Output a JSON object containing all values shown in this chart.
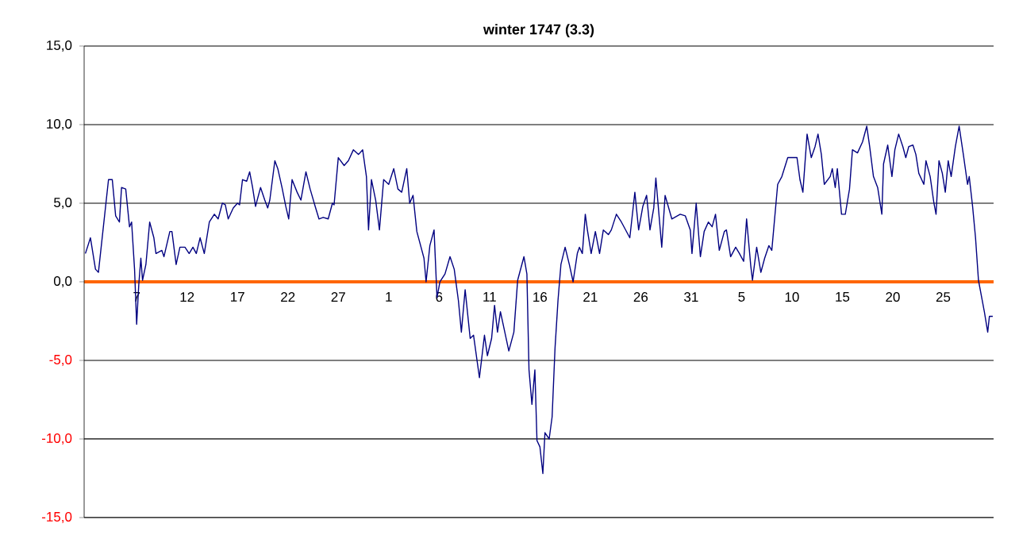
{
  "chart_data": {
    "type": "line",
    "title": "winter 1747 (3.3)",
    "x": [
      "1746-12-01T22:00",
      "1746-12-02T10:00",
      "1746-12-02T22:00",
      "1746-12-03T05:00",
      "1746-12-04T05:00",
      "1746-12-04T14:00",
      "1746-12-04T22:00",
      "1746-12-05T07:00",
      "1746-12-05T12:00",
      "1746-12-05T22:00",
      "1746-12-06T07:00",
      "1746-12-06T12:00",
      "1746-12-06T19:00",
      "1746-12-07T00:00",
      "1746-12-07T05:00",
      "1746-12-07T10:00",
      "1746-12-07T14:00",
      "1746-12-07T22:00",
      "1746-12-08T07:00",
      "1746-12-08T17:00",
      "1746-12-08T22:00",
      "1746-12-09T12:00",
      "1746-12-09T17:00",
      "1746-12-10T07:00",
      "1746-12-10T12:00",
      "1746-12-10T22:00",
      "1746-12-11T07:00",
      "1746-12-11T19:00",
      "1746-12-12T05:00",
      "1746-12-12T14:00",
      "1746-12-12T22:00",
      "1746-12-13T07:00",
      "1746-12-13T17:00",
      "1746-12-14T05:00",
      "1746-12-14T17:00",
      "1746-12-15T02:00",
      "1746-12-15T12:00",
      "1746-12-15T19:00",
      "1746-12-16T02:00",
      "1746-12-16T14:00",
      "1746-12-17T00:00",
      "1746-12-17T05:00",
      "1746-12-17T12:00",
      "1746-12-17T22:00",
      "1746-12-18T05:00",
      "1746-12-18T12:00",
      "1746-12-18T19:00",
      "1746-12-19T07:00",
      "1746-12-19T17:00",
      "1746-12-20T00:00",
      "1746-12-20T05:00",
      "1746-12-20T17:00",
      "1746-12-21T00:00",
      "1746-12-21T10:00",
      "1746-12-21T19:00",
      "1746-12-22T02:00",
      "1746-12-22T10:00",
      "1746-12-22T22:00",
      "1746-12-23T07:00",
      "1746-12-23T19:00",
      "1746-12-24T05:00",
      "1746-12-24T17:00",
      "1746-12-25T02:00",
      "1746-12-25T12:00",
      "1746-12-26T00:00",
      "1746-12-26T10:00",
      "1746-12-26T14:00",
      "1746-12-27T00:00",
      "1746-12-27T14:00",
      "1746-12-28T00:00",
      "1746-12-28T12:00",
      "1746-12-29T00:00",
      "1746-12-29T10:00",
      "1746-12-29T19:00",
      "1746-12-30T00:00",
      "1746-12-30T07:00",
      "1746-12-30T17:00",
      "1746-12-31T02:00",
      "1746-12-31T12:00",
      "1747-01-01T00:00",
      "1747-01-01T12:00",
      "1747-01-01T22:00",
      "1747-01-02T07:00",
      "1747-01-02T19:00",
      "1747-01-03T02:00",
      "1747-01-03T10:00",
      "1747-01-03T19:00",
      "1747-01-04T05:00",
      "1747-01-04T12:00",
      "1747-01-04T17:00",
      "1747-01-05T02:00",
      "1747-01-05T12:00",
      "1747-01-05T19:00",
      "1747-01-06T02:00",
      "1747-01-06T14:00",
      "1747-01-07T02:00",
      "1747-01-07T12:00",
      "1747-01-07T22:00",
      "1747-01-08T05:00",
      "1747-01-08T14:00",
      "1747-01-09T02:00",
      "1747-01-09T10:00",
      "1747-01-10T00:00",
      "1747-01-10T12:00",
      "1747-01-10T19:00",
      "1747-01-11T05:00",
      "1747-01-11T12:00",
      "1747-01-11T19:00",
      "1747-01-12T02:00",
      "1747-01-12T10:00",
      "1747-01-12T22:00",
      "1747-01-13T10:00",
      "1747-01-13T19:00",
      "1747-01-14T10:00",
      "1747-01-14T17:00",
      "1747-01-14T22:00",
      "1747-01-15T05:00",
      "1747-01-15T12:00",
      "1747-01-15T17:00",
      "1747-01-16T00:00",
      "1747-01-16T07:00",
      "1747-01-16T12:00",
      "1747-01-16T22:00",
      "1747-01-17T05:00",
      "1747-01-17T12:00",
      "1747-01-17T19:00",
      "1747-01-18T02:00",
      "1747-01-18T12:00",
      "1747-01-18T22:00",
      "1747-01-19T07:00",
      "1747-01-19T17:00",
      "1747-01-19T22:00",
      "1747-01-20T05:00",
      "1747-01-20T12:00",
      "1747-01-20T17:00",
      "1747-01-21T02:00",
      "1747-01-21T12:00",
      "1747-01-21T22:00",
      "1747-01-22T07:00",
      "1747-01-22T19:00",
      "1747-01-23T02:00",
      "1747-01-23T14:00",
      "1747-01-24T02:00",
      "1747-01-24T22:00",
      "1747-01-25T10:00",
      "1747-01-25T19:00",
      "1747-01-26T05:00",
      "1747-01-26T14:00",
      "1747-01-26T22:00",
      "1747-01-27T07:00",
      "1747-01-27T12:00",
      "1747-01-28T02:00",
      "1747-01-28T10:00",
      "1747-01-29T02:00",
      "1747-01-29T22:00",
      "1747-01-30T10:00",
      "1747-01-30T22:00",
      "1747-01-31T02:00",
      "1747-01-31T12:00",
      "1747-01-31T22:00",
      "1747-02-01T07:00",
      "1747-02-01T17:00",
      "1747-02-02T02:00",
      "1747-02-02T10:00",
      "1747-02-02T19:00",
      "1747-02-03T07:00",
      "1747-02-03T12:00",
      "1747-02-03T22:00",
      "1747-02-04T10:00",
      "1747-02-04T19:00",
      "1747-02-05T05:00",
      "1747-02-05T12:00",
      "1747-02-05T22:00",
      "1747-02-06T02:00",
      "1747-02-06T12:00",
      "1747-02-06T22:00",
      "1747-02-07T07:00",
      "1747-02-07T17:00",
      "1747-02-08T00:00",
      "1747-02-08T10:00",
      "1747-02-08T14:00",
      "1747-02-09T00:00",
      "1747-02-09T14:00",
      "1747-02-10T12:00",
      "1747-02-10T19:00",
      "1747-02-11T02:00",
      "1747-02-11T12:00",
      "1747-02-11T22:00",
      "1747-02-12T07:00",
      "1747-02-12T14:00",
      "1747-02-12T22:00",
      "1747-02-13T05:00",
      "1747-02-13T19:00",
      "1747-02-14T00:00",
      "1747-02-14T07:00",
      "1747-02-14T12:00",
      "1747-02-14T22:00",
      "1747-02-15T07:00",
      "1747-02-15T17:00",
      "1747-02-16T00:00",
      "1747-02-16T12:00",
      "1747-02-17T00:00",
      "1747-02-17T10:00",
      "1747-02-17T17:00",
      "1747-02-18T02:00",
      "1747-02-18T12:00",
      "1747-02-18T22:00",
      "1747-02-19T02:00",
      "1747-02-19T12:00",
      "1747-02-19T22:00",
      "1747-02-20T05:00",
      "1747-02-20T14:00",
      "1747-02-21T00:00",
      "1747-02-21T07:00",
      "1747-02-21T14:00",
      "1747-02-22T00:00",
      "1747-02-22T07:00",
      "1747-02-22T14:00",
      "1747-02-23T02:00",
      "1747-02-23T07:00",
      "1747-02-23T17:00",
      "1747-02-24T02:00",
      "1747-02-24T07:00",
      "1747-02-24T14:00",
      "1747-02-24T22:00",
      "1747-02-25T05:00",
      "1747-02-25T12:00",
      "1747-02-25T19:00",
      "1747-02-26T05:00",
      "1747-02-26T14:00",
      "1747-02-27T00:00",
      "1747-02-27T10:00",
      "1747-02-27T14:00",
      "1747-02-27T22:00",
      "1747-02-28T05:00",
      "1747-02-28T12:00",
      "1747-02-28T19:00",
      "1747-03-01T02:00",
      "1747-03-01T10:00",
      "1747-03-01T14:00",
      "1747-03-01T22:00"
    ],
    "series": [
      {
        "color": "#000080",
        "values": [
          1.8,
          2.8,
          0.8,
          0.6,
          6.5,
          6.5,
          4.2,
          3.8,
          6.0,
          5.9,
          3.5,
          3.8,
          0.8,
          -2.7,
          -0.2,
          1.5,
          0.1,
          1.1,
          3.8,
          2.8,
          1.8,
          2.0,
          1.6,
          3.2,
          3.2,
          1.1,
          2.2,
          2.2,
          1.8,
          2.2,
          1.8,
          2.8,
          1.8,
          3.8,
          4.3,
          4.0,
          5.0,
          4.9,
          4.0,
          4.7,
          5.0,
          4.9,
          6.5,
          6.4,
          7.0,
          6.0,
          4.8,
          6.0,
          5.2,
          4.7,
          5.2,
          7.7,
          7.2,
          6.0,
          4.8,
          4.0,
          6.5,
          5.7,
          5.2,
          7.0,
          5.9,
          4.8,
          4.0,
          4.1,
          4.0,
          5.0,
          4.9,
          7.9,
          7.4,
          7.7,
          8.4,
          8.1,
          8.4,
          6.7,
          3.3,
          6.5,
          5.2,
          3.3,
          6.5,
          6.2,
          7.2,
          5.9,
          5.7,
          7.2,
          5.0,
          5.5,
          3.2,
          2.2,
          1.5,
          0.0,
          2.3,
          3.3,
          -1.0,
          0.0,
          0.5,
          1.6,
          0.8,
          -1.2,
          -3.2,
          -0.5,
          -3.6,
          -3.4,
          -6.1,
          -3.4,
          -4.7,
          -3.6,
          -1.5,
          -3.2,
          -1.9,
          -2.9,
          -4.4,
          -3.2,
          0.1,
          1.6,
          0.5,
          -5.6,
          -7.8,
          -5.6,
          -10.1,
          -10.5,
          -12.2,
          -9.6,
          -10.0,
          -8.6,
          -4.2,
          -1.2,
          1.1,
          2.2,
          1.1,
          0.0,
          1.8,
          2.2,
          1.8,
          4.3,
          3.3,
          1.8,
          3.2,
          1.8,
          3.3,
          3.0,
          3.3,
          4.3,
          3.8,
          2.8,
          5.7,
          3.3,
          4.8,
          5.5,
          3.3,
          4.7,
          6.6,
          2.2,
          5.5,
          4.0,
          4.3,
          4.2,
          3.3,
          1.8,
          5.0,
          1.6,
          3.2,
          3.8,
          3.5,
          4.3,
          2.0,
          3.2,
          3.3,
          1.6,
          2.2,
          1.8,
          1.3,
          4.0,
          1.0,
          0.1,
          2.2,
          0.6,
          1.5,
          2.3,
          2.0,
          5.0,
          6.2,
          6.7,
          7.9,
          7.9,
          6.5,
          5.7,
          9.4,
          7.9,
          8.6,
          9.4,
          8.1,
          6.2,
          6.7,
          7.2,
          6.0,
          7.2,
          4.3,
          4.3,
          5.9,
          8.4,
          8.2,
          8.9,
          9.9,
          8.6,
          6.7,
          6.0,
          4.3,
          7.5,
          8.7,
          6.7,
          8.4,
          9.4,
          8.6,
          7.9,
          8.6,
          8.7,
          8.1,
          6.9,
          6.2,
          7.7,
          6.7,
          5.0,
          4.3,
          7.7,
          6.9,
          5.7,
          7.7,
          6.7,
          8.6,
          9.9,
          8.1,
          6.2,
          6.7,
          4.8,
          2.8,
          0.1,
          -0.9,
          -1.9,
          -3.2,
          -2.2,
          -2.2
        ]
      }
    ],
    "xlim": [
      "1746-12-01T19:00",
      "1747-03-02T00:00"
    ],
    "xticks": [
      {
        "value": "1746-12-07",
        "label": "7"
      },
      {
        "value": "1746-12-12",
        "label": "12"
      },
      {
        "value": "1746-12-17",
        "label": "17"
      },
      {
        "value": "1746-12-22",
        "label": "22"
      },
      {
        "value": "1746-12-27",
        "label": "27"
      },
      {
        "value": "1747-01-01",
        "label": "1"
      },
      {
        "value": "1747-01-06",
        "label": "6"
      },
      {
        "value": "1747-01-11",
        "label": "11"
      },
      {
        "value": "1747-01-16",
        "label": "16"
      },
      {
        "value": "1747-01-21",
        "label": "21"
      },
      {
        "value": "1747-01-26",
        "label": "26"
      },
      {
        "value": "1747-01-31",
        "label": "31"
      },
      {
        "value": "1747-02-05",
        "label": "5"
      },
      {
        "value": "1747-02-10",
        "label": "10"
      },
      {
        "value": "1747-02-15",
        "label": "15"
      },
      {
        "value": "1747-02-20",
        "label": "20"
      },
      {
        "value": "1747-02-25",
        "label": "25"
      }
    ],
    "ylim": [
      -15,
      15
    ],
    "yticks": [
      {
        "value": -15,
        "label": "-15,0"
      },
      {
        "value": -10,
        "label": "-10,0"
      },
      {
        "value": -5,
        "label": "-5,0"
      },
      {
        "value": 0,
        "label": "0,0"
      },
      {
        "value": 5,
        "label": "5,0"
      },
      {
        "value": 10,
        "label": "10,0"
      },
      {
        "value": 15,
        "label": "15,0"
      }
    ],
    "grid": "y",
    "marker": "none",
    "line_style": "solid"
  }
}
